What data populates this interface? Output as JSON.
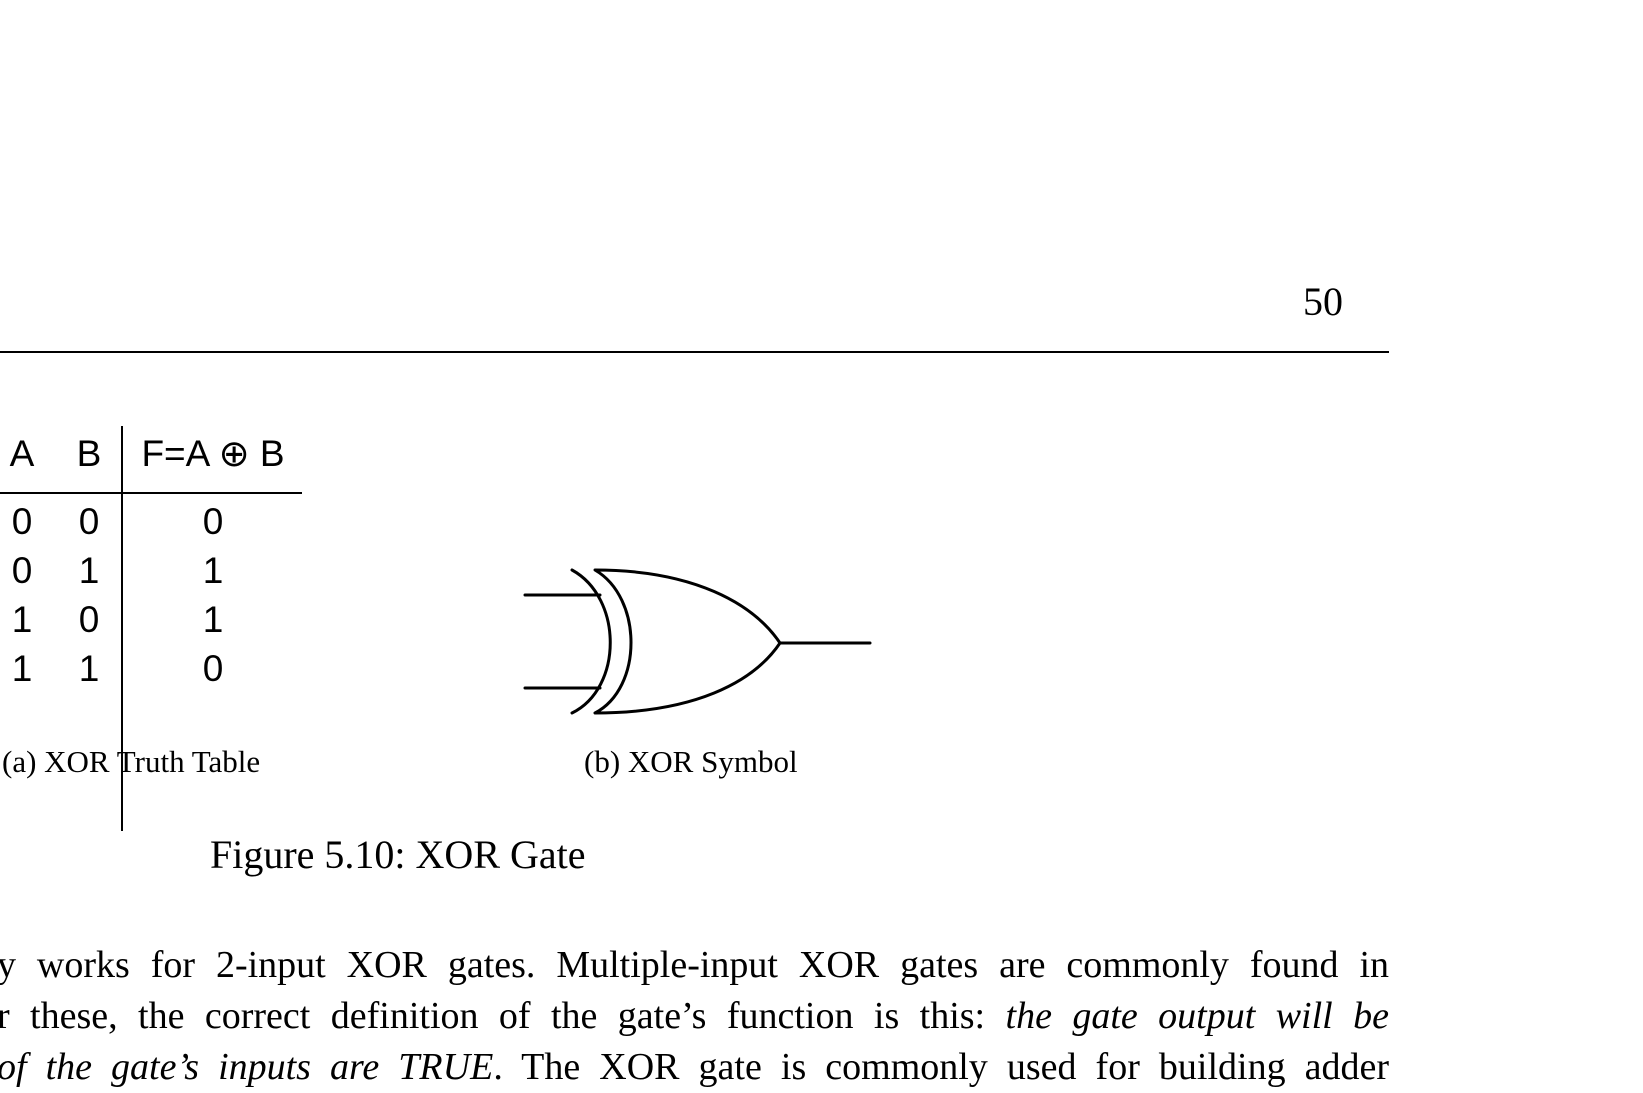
{
  "page": {
    "number": "50"
  },
  "truth_table": {
    "headers": [
      "A",
      "B",
      "F=A ⊕ B"
    ],
    "rows": [
      [
        "0",
        "0",
        "0"
      ],
      [
        "0",
        "1",
        "1"
      ],
      [
        "1",
        "0",
        "1"
      ],
      [
        "1",
        "1",
        "0"
      ]
    ],
    "caption": "(a)  XOR Truth Table"
  },
  "symbol": {
    "caption": "(b)  XOR Symbol"
  },
  "figure": {
    "caption": "Figure 5.10: XOR Gate"
  },
  "body": {
    "lines": [
      [
        {
          "text": "y works for 2-input XOR gates. Multiple-input XOR gates are commonly found in",
          "italic": false
        }
      ],
      [
        {
          "text": "r these, the correct definition of the gate’s function is this: ",
          "italic": false
        },
        {
          "text": "the gate output will be",
          "italic": true
        }
      ],
      [
        {
          "text": "of the gate’s inputs are TRUE",
          "italic": true
        },
        {
          "text": ". The XOR gate is commonly used for building adder",
          "italic": false
        }
      ]
    ]
  }
}
